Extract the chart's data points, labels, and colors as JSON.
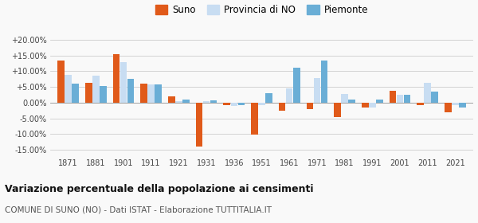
{
  "years": [
    1871,
    1881,
    1901,
    1911,
    1921,
    1931,
    1936,
    1951,
    1961,
    1971,
    1981,
    1991,
    2001,
    2011,
    2021
  ],
  "suno": [
    13.3,
    6.2,
    15.5,
    6.1,
    2.0,
    -14.0,
    -0.8,
    -10.2,
    -2.5,
    -2.0,
    -4.5,
    -1.5,
    3.7,
    -0.7,
    -3.0
  ],
  "provincia": [
    8.8,
    8.6,
    12.8,
    5.8,
    0.5,
    0.5,
    -1.0,
    -0.8,
    4.5,
    7.9,
    2.8,
    -1.5,
    2.5,
    6.2,
    -0.7
  ],
  "piemonte": [
    6.0,
    5.2,
    7.5,
    5.7,
    0.9,
    0.8,
    -0.8,
    3.1,
    11.1,
    13.3,
    1.0,
    1.0,
    2.5,
    3.5,
    -1.5
  ],
  "suno_color": "#e05a1a",
  "prov_color": "#c8ddf2",
  "piem_color": "#6aaed6",
  "bg_color": "#f9f9f9",
  "grid_color": "#cccccc",
  "title": "Variazione percentuale della popolazione ai censimenti",
  "subtitle": "COMUNE DI SUNO (NO) - Dati ISTAT - Elaborazione TUTTITALIA.IT",
  "ylim": [
    -17,
    22
  ],
  "yticks": [
    -15,
    -10,
    -5,
    0,
    5,
    10,
    15,
    20
  ],
  "ytick_labels": [
    "-15.00%",
    "-10.00%",
    "-5.00%",
    "0.00%",
    "+5.00%",
    "+10.00%",
    "+15.00%",
    "+20.00%"
  ]
}
